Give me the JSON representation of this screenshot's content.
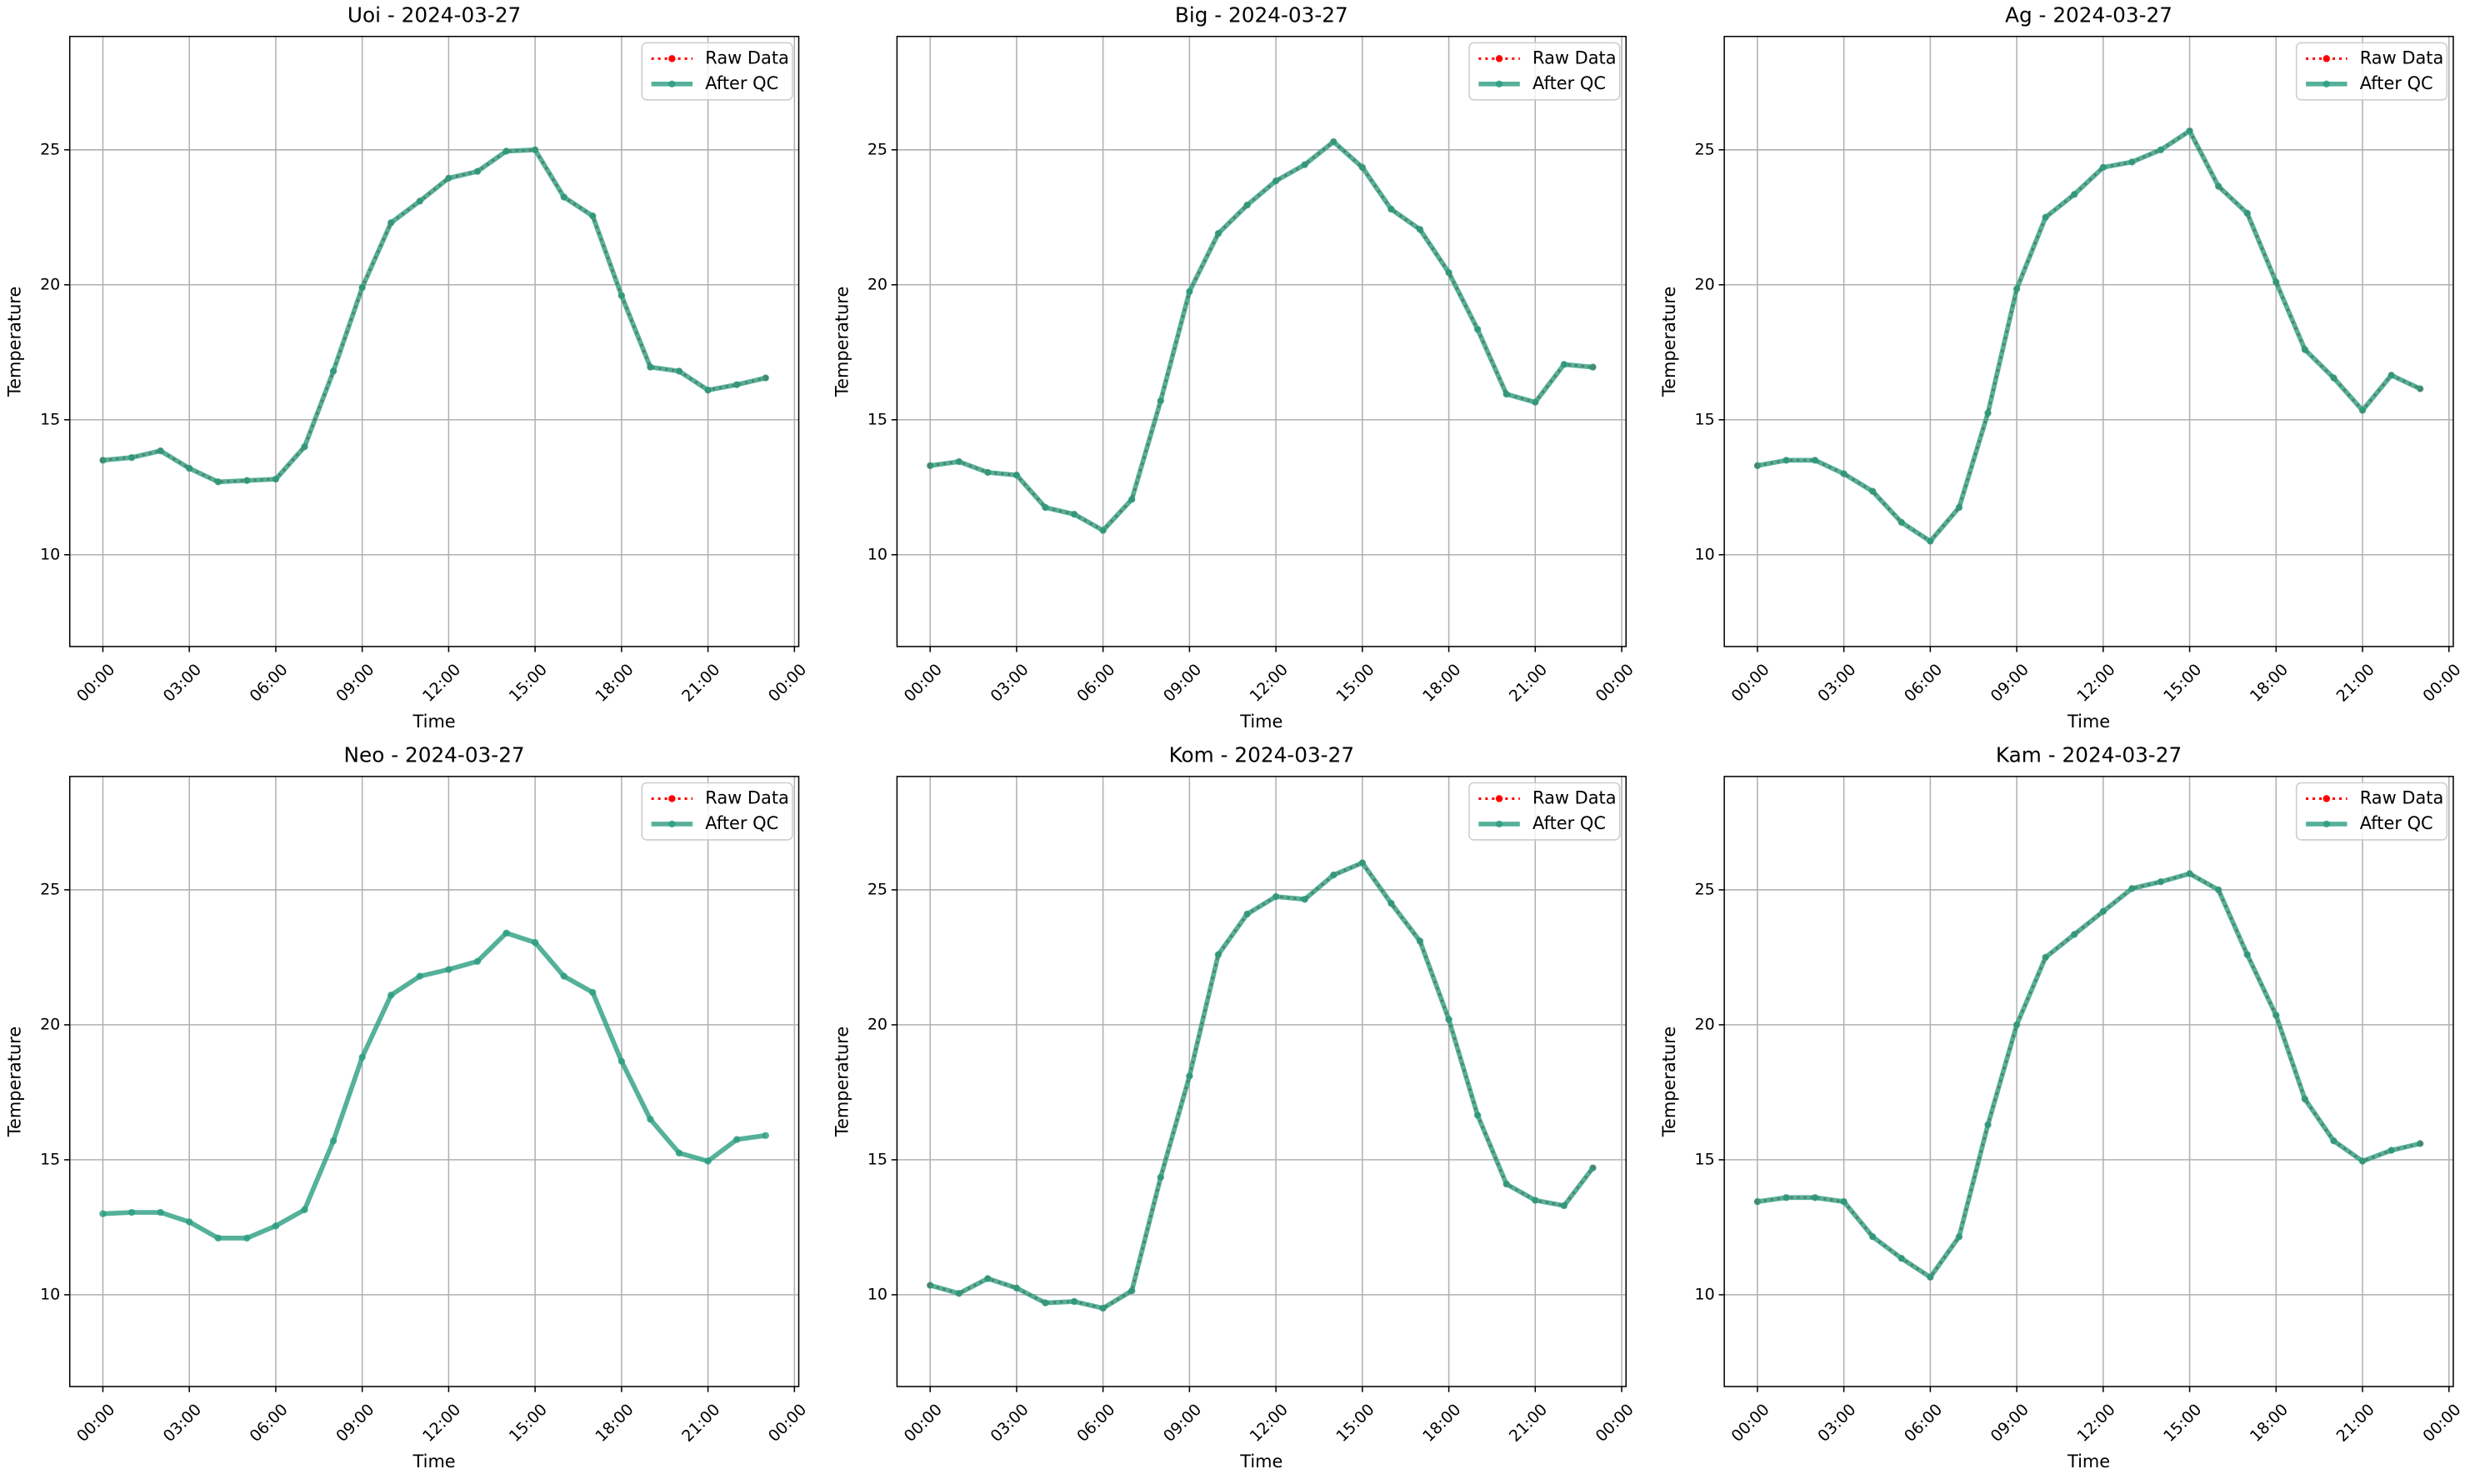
{
  "chart_data": [
    {
      "type": "line",
      "title": "Uoi - 2024-03-27",
      "xlabel": "Time",
      "ylabel": "Temperature",
      "x": [
        0,
        1,
        2,
        3,
        4,
        5,
        6,
        7,
        8,
        9,
        10,
        11,
        12,
        13,
        14,
        15,
        16,
        17,
        18,
        19,
        20,
        21,
        22,
        23
      ],
      "series": [
        {
          "name": "Raw Data",
          "color": "#ff0000",
          "style": "dotted",
          "values": [
            13.5,
            13.6,
            13.85,
            13.2,
            12.7,
            12.75,
            12.8,
            14.0,
            16.8,
            19.9,
            22.3,
            23.1,
            23.95,
            24.2,
            24.95,
            25.0,
            23.25,
            22.55,
            19.6,
            16.95,
            16.8,
            16.1,
            16.3,
            16.55
          ]
        },
        {
          "name": "After QC",
          "color": "#2a9d7f",
          "alpha": 0.8,
          "style": "solid",
          "values": [
            13.5,
            13.6,
            13.85,
            13.2,
            12.7,
            12.75,
            12.8,
            14.0,
            16.8,
            19.9,
            22.3,
            23.1,
            23.95,
            24.2,
            24.95,
            25.0,
            23.25,
            22.55,
            19.6,
            16.95,
            16.8,
            16.1,
            16.3,
            16.55
          ]
        }
      ],
      "xlim": [
        -1.15,
        24.15
      ],
      "ylim": [
        6.6,
        29.2
      ],
      "xticks": [
        {
          "value": 0,
          "label": "00:00"
        },
        {
          "value": 3,
          "label": "03:00"
        },
        {
          "value": 6,
          "label": "06:00"
        },
        {
          "value": 9,
          "label": "09:00"
        },
        {
          "value": 12,
          "label": "12:00"
        },
        {
          "value": 15,
          "label": "15:00"
        },
        {
          "value": 18,
          "label": "18:00"
        },
        {
          "value": 21,
          "label": "21:00"
        },
        {
          "value": 24,
          "label": "00:00"
        }
      ],
      "yticks": [
        10,
        15,
        20,
        25
      ],
      "grid": true,
      "legend": "upper right"
    },
    {
      "type": "line",
      "title": "Big - 2024-03-27",
      "xlabel": "Time",
      "ylabel": "Temperature",
      "x": [
        0,
        1,
        2,
        3,
        4,
        5,
        6,
        7,
        8,
        9,
        10,
        11,
        12,
        13,
        14,
        15,
        16,
        17,
        18,
        19,
        20,
        21,
        22,
        23
      ],
      "series": [
        {
          "name": "Raw Data",
          "color": "#ff0000",
          "style": "dotted",
          "values": [
            13.3,
            13.45,
            13.05,
            12.95,
            11.75,
            11.5,
            10.9,
            12.05,
            15.7,
            19.75,
            21.9,
            22.95,
            23.85,
            24.45,
            25.3,
            24.35,
            22.8,
            22.05,
            20.45,
            18.35,
            15.95,
            15.65,
            17.05,
            16.95
          ]
        },
        {
          "name": "After QC",
          "color": "#2a9d7f",
          "alpha": 0.8,
          "style": "solid",
          "values": [
            13.3,
            13.45,
            13.05,
            12.95,
            11.75,
            11.5,
            10.9,
            12.05,
            15.7,
            19.75,
            21.9,
            22.95,
            23.85,
            24.45,
            25.3,
            24.35,
            22.8,
            22.05,
            20.45,
            18.35,
            15.95,
            15.65,
            17.05,
            16.95
          ]
        }
      ],
      "xlim": [
        -1.15,
        24.15
      ],
      "ylim": [
        6.6,
        29.2
      ],
      "xticks": [
        {
          "value": 0,
          "label": "00:00"
        },
        {
          "value": 3,
          "label": "03:00"
        },
        {
          "value": 6,
          "label": "06:00"
        },
        {
          "value": 9,
          "label": "09:00"
        },
        {
          "value": 12,
          "label": "12:00"
        },
        {
          "value": 15,
          "label": "15:00"
        },
        {
          "value": 18,
          "label": "18:00"
        },
        {
          "value": 21,
          "label": "21:00"
        },
        {
          "value": 24,
          "label": "00:00"
        }
      ],
      "yticks": [
        10,
        15,
        20,
        25
      ],
      "grid": true,
      "legend": "upper right"
    },
    {
      "type": "line",
      "title": "Ag - 2024-03-27",
      "xlabel": "Time",
      "ylabel": "Temperature",
      "x": [
        0,
        1,
        2,
        3,
        4,
        5,
        6,
        7,
        8,
        9,
        10,
        11,
        12,
        13,
        14,
        15,
        16,
        17,
        18,
        19,
        20,
        21,
        22,
        23
      ],
      "series": [
        {
          "name": "Raw Data",
          "color": "#ff0000",
          "style": "dotted",
          "values": [
            13.3,
            13.5,
            13.5,
            13.0,
            12.35,
            11.2,
            10.5,
            11.75,
            15.25,
            19.85,
            22.5,
            23.35,
            24.35,
            24.55,
            25.0,
            25.7,
            23.65,
            22.65,
            20.1,
            17.6,
            16.55,
            15.35,
            16.65,
            16.15
          ]
        },
        {
          "name": "After QC",
          "color": "#2a9d7f",
          "alpha": 0.8,
          "style": "solid",
          "values": [
            13.3,
            13.5,
            13.5,
            13.0,
            12.35,
            11.2,
            10.5,
            11.75,
            15.25,
            19.85,
            22.5,
            23.35,
            24.35,
            24.55,
            25.0,
            25.7,
            23.65,
            22.65,
            20.1,
            17.6,
            16.55,
            15.35,
            16.65,
            16.15
          ]
        }
      ],
      "xlim": [
        -1.15,
        24.15
      ],
      "ylim": [
        6.6,
        29.2
      ],
      "xticks": [
        {
          "value": 0,
          "label": "00:00"
        },
        {
          "value": 3,
          "label": "03:00"
        },
        {
          "value": 6,
          "label": "06:00"
        },
        {
          "value": 9,
          "label": "09:00"
        },
        {
          "value": 12,
          "label": "12:00"
        },
        {
          "value": 15,
          "label": "15:00"
        },
        {
          "value": 18,
          "label": "18:00"
        },
        {
          "value": 21,
          "label": "21:00"
        },
        {
          "value": 24,
          "label": "00:00"
        }
      ],
      "yticks": [
        10,
        15,
        20,
        25
      ],
      "grid": true,
      "legend": "upper right"
    },
    {
      "type": "line",
      "title": "Neo - 2024-03-27",
      "xlabel": "Time",
      "ylabel": "Temperature",
      "x": [
        0,
        1,
        2,
        3,
        4,
        5,
        6,
        7,
        8,
        9,
        10,
        11,
        12,
        13,
        14,
        15,
        16,
        17,
        18,
        19,
        20,
        21,
        22,
        23
      ],
      "series": [
        {
          "name": "Raw Data",
          "color": "#ff0000",
          "style": "dotted",
          "values": [
            null,
            null,
            null,
            null,
            null,
            null,
            null,
            null,
            null,
            null,
            null,
            null,
            null,
            null,
            null,
            null,
            null,
            null,
            null,
            null,
            null,
            null,
            null,
            null
          ]
        },
        {
          "name": "After QC",
          "color": "#2a9d7f",
          "alpha": 0.8,
          "style": "solid",
          "values": [
            13.0,
            13.05,
            13.05,
            12.7,
            12.1,
            12.1,
            12.55,
            13.15,
            15.7,
            18.8,
            21.1,
            21.8,
            22.05,
            22.35,
            23.4,
            23.05,
            21.8,
            21.2,
            18.65,
            16.5,
            15.25,
            14.95,
            15.75,
            15.9
          ]
        }
      ],
      "xlim": [
        -1.15,
        24.15
      ],
      "ylim": [
        6.6,
        29.2
      ],
      "xticks": [
        {
          "value": 0,
          "label": "00:00"
        },
        {
          "value": 3,
          "label": "03:00"
        },
        {
          "value": 6,
          "label": "06:00"
        },
        {
          "value": 9,
          "label": "09:00"
        },
        {
          "value": 12,
          "label": "12:00"
        },
        {
          "value": 15,
          "label": "15:00"
        },
        {
          "value": 18,
          "label": "18:00"
        },
        {
          "value": 21,
          "label": "21:00"
        },
        {
          "value": 24,
          "label": "00:00"
        }
      ],
      "yticks": [
        10,
        15,
        20,
        25
      ],
      "grid": true,
      "legend": "upper right"
    },
    {
      "type": "line",
      "title": "Kom - 2024-03-27",
      "xlabel": "Time",
      "ylabel": "Temperature",
      "x": [
        0,
        1,
        2,
        3,
        4,
        5,
        6,
        7,
        8,
        9,
        10,
        11,
        12,
        13,
        14,
        15,
        16,
        17,
        18,
        19,
        20,
        21,
        22,
        23
      ],
      "series": [
        {
          "name": "Raw Data",
          "color": "#ff0000",
          "style": "dotted",
          "values": [
            10.35,
            10.05,
            10.6,
            10.25,
            9.7,
            9.75,
            9.5,
            10.15,
            14.35,
            18.1,
            22.6,
            24.1,
            24.75,
            24.65,
            25.55,
            26.0,
            24.5,
            23.1,
            20.2,
            16.65,
            14.1,
            13.5,
            13.3,
            14.7
          ]
        },
        {
          "name": "After QC",
          "color": "#2a9d7f",
          "alpha": 0.8,
          "style": "solid",
          "values": [
            10.35,
            10.05,
            10.6,
            10.25,
            9.7,
            9.75,
            9.5,
            10.15,
            14.35,
            18.1,
            22.6,
            24.1,
            24.75,
            24.65,
            25.55,
            26.0,
            24.5,
            23.1,
            20.2,
            16.65,
            14.1,
            13.5,
            13.3,
            14.7
          ]
        }
      ],
      "xlim": [
        -1.15,
        24.15
      ],
      "ylim": [
        6.6,
        29.2
      ],
      "xticks": [
        {
          "value": 0,
          "label": "00:00"
        },
        {
          "value": 3,
          "label": "03:00"
        },
        {
          "value": 6,
          "label": "06:00"
        },
        {
          "value": 9,
          "label": "09:00"
        },
        {
          "value": 12,
          "label": "12:00"
        },
        {
          "value": 15,
          "label": "15:00"
        },
        {
          "value": 18,
          "label": "18:00"
        },
        {
          "value": 21,
          "label": "21:00"
        },
        {
          "value": 24,
          "label": "00:00"
        }
      ],
      "yticks": [
        10,
        15,
        20,
        25
      ],
      "grid": true,
      "legend": "upper right"
    },
    {
      "type": "line",
      "title": "Kam - 2024-03-27",
      "xlabel": "Time",
      "ylabel": "Temperature",
      "x": [
        0,
        1,
        2,
        3,
        4,
        5,
        6,
        7,
        8,
        9,
        10,
        11,
        12,
        13,
        14,
        15,
        16,
        17,
        18,
        19,
        20,
        21,
        22,
        23
      ],
      "series": [
        {
          "name": "Raw Data",
          "color": "#ff0000",
          "style": "dotted",
          "values": [
            13.45,
            13.6,
            13.6,
            13.45,
            12.15,
            11.35,
            10.65,
            12.15,
            16.3,
            20.0,
            22.5,
            23.35,
            24.2,
            25.05,
            25.3,
            25.6,
            25.0,
            22.6,
            20.35,
            17.25,
            15.7,
            14.95,
            15.35,
            15.6
          ]
        },
        {
          "name": "After QC",
          "color": "#2a9d7f",
          "alpha": 0.8,
          "style": "solid",
          "values": [
            13.45,
            13.6,
            13.6,
            13.45,
            12.15,
            11.35,
            10.65,
            12.15,
            16.3,
            20.0,
            22.5,
            23.35,
            24.2,
            25.05,
            25.3,
            25.6,
            25.0,
            22.6,
            20.35,
            17.25,
            15.7,
            14.95,
            15.35,
            15.6
          ]
        }
      ],
      "xlim": [
        -1.15,
        24.15
      ],
      "ylim": [
        6.6,
        29.2
      ],
      "xticks": [
        {
          "value": 0,
          "label": "00:00"
        },
        {
          "value": 3,
          "label": "03:00"
        },
        {
          "value": 6,
          "label": "06:00"
        },
        {
          "value": 9,
          "label": "09:00"
        },
        {
          "value": 12,
          "label": "12:00"
        },
        {
          "value": 15,
          "label": "15:00"
        },
        {
          "value": 18,
          "label": "18:00"
        },
        {
          "value": 21,
          "label": "21:00"
        },
        {
          "value": 24,
          "label": "00:00"
        }
      ],
      "yticks": [
        10,
        15,
        20,
        25
      ],
      "grid": true,
      "legend": "upper right"
    }
  ]
}
